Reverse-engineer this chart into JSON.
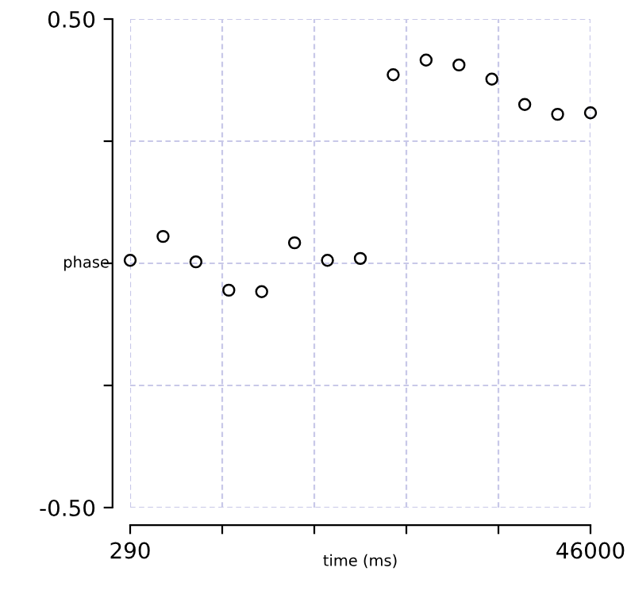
{
  "chart_data": {
    "type": "scatter",
    "xlabel": "time (ms)",
    "ylabel": "phase",
    "x": [
      290,
      3555,
      6820,
      10085,
      13350,
      16615,
      19880,
      23145,
      26410,
      29675,
      32940,
      36205,
      39470,
      42735,
      46000
    ],
    "series": [
      {
        "color": "#000000",
        "values": [
          0.006,
          0.055,
          0.003,
          -0.055,
          -0.058,
          0.042,
          0.006,
          0.01,
          0.386,
          0.416,
          0.406,
          0.377,
          0.325,
          0.305,
          0.308
        ]
      }
    ],
    "marker": "circle",
    "xlim": [
      290,
      46000
    ],
    "ylim": [
      -0.5,
      0.5
    ],
    "xticks": [
      290,
      {
        "value": 9432,
        "label": null
      },
      {
        "value": 18574,
        "label": null
      },
      {
        "value": 27716,
        "label": null
      },
      {
        "value": 36858,
        "label": null
      },
      46000
    ],
    "yticks": [
      {
        "value": -0.5,
        "label": "-0.50"
      },
      {
        "value": -0.25,
        "label": null
      },
      {
        "value": 0,
        "label": null
      },
      {
        "value": 0.25,
        "label": null
      },
      {
        "value": 0.5,
        "label": "0.50"
      }
    ],
    "grid": true,
    "legend": false
  }
}
